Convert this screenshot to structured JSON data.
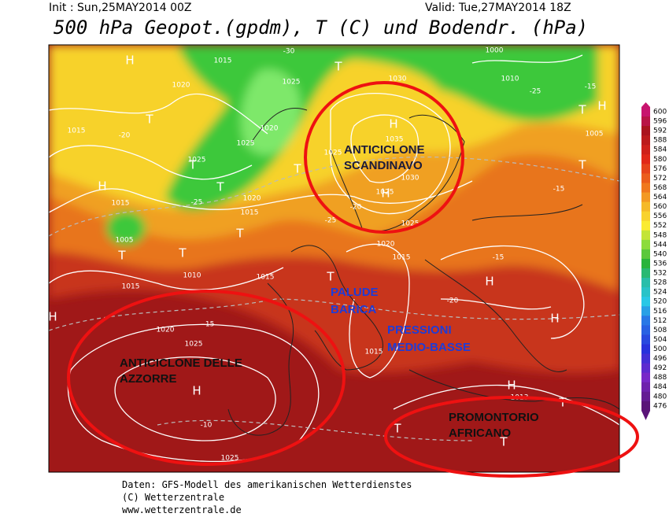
{
  "header": {
    "init": "Init : Sun,25MAY2014 00Z",
    "valid": "Valid: Tue,27MAY2014 18Z",
    "title": "500 hPa Geopot.(gpdm), T (C) und Bodendr. (hPa)"
  },
  "annotations": [
    "ANTICICLONE SCANDINAVO",
    "PALUDE BARICA",
    "PRESSIONI MEDIO-BASSE",
    "ANTICICLONE DELLE AZZORRE",
    "PROMONTORIO AFRICANO"
  ],
  "map": {
    "labels": [
      "H",
      "H",
      "H",
      "H",
      "H",
      "H",
      "H",
      "H",
      "H",
      "H",
      "T",
      "T",
      "T",
      "T",
      "T",
      "T",
      "T",
      "T",
      "T",
      "T",
      "T",
      "T",
      "T",
      "T",
      "1015",
      "1020",
      "1025",
      "1020",
      "1025",
      "1025",
      "1020",
      "1015",
      "1015",
      "1015",
      "1005",
      "1010",
      "1015",
      "1015",
      "1020",
      "1025",
      "1025",
      "1035",
      "1030",
      "1030",
      "1025",
      "1025",
      "1025",
      "1020",
      "1015",
      "1015",
      "1005",
      "1010",
      "1000",
      "1013",
      "-20",
      "-25",
      "-30",
      "-25",
      "-20",
      "-15",
      "-15",
      "-20",
      "-10",
      "-15",
      "-25",
      "-15"
    ]
  },
  "colorbar": {
    "labels": [
      "600",
      "596",
      "592",
      "588",
      "584",
      "580",
      "576",
      "572",
      "568",
      "564",
      "560",
      "556",
      "552",
      "548",
      "544",
      "540",
      "536",
      "532",
      "528",
      "524",
      "520",
      "516",
      "512",
      "508",
      "504",
      "500",
      "496",
      "492",
      "488",
      "484",
      "480",
      "476"
    ]
  },
  "footer": [
    "Daten: GFS-Modell des amerikanischen Wetterdienstes",
    "(C) Wetterzentrale",
    "www.wetterzentrale.de"
  ]
}
